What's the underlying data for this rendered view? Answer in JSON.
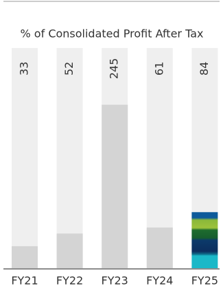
{
  "chart_data": {
    "type": "bar",
    "title": "% of Consolidated Profit After Tax",
    "categories": [
      "FY21",
      "FY22",
      "FY23",
      "FY24",
      "FY25"
    ],
    "values": [
      33,
      52,
      245,
      61,
      84
    ],
    "colors": [
      "#d4d4d4",
      "#d4d4d4",
      "#d4d4d4",
      "#d4d4d4",
      "url(#fy25-fill)"
    ],
    "ylim": [
      0,
      330
    ]
  }
}
